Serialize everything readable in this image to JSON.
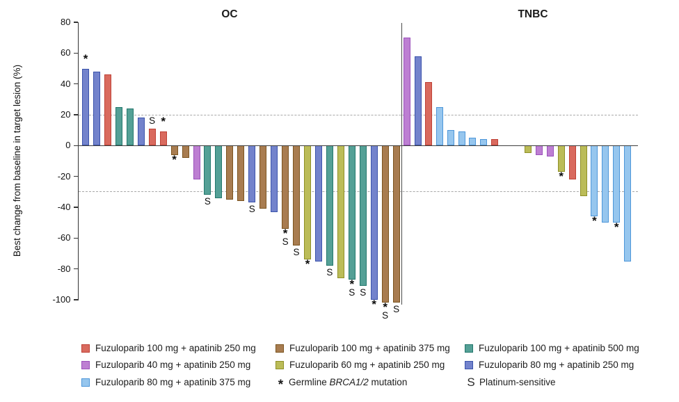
{
  "chart_data": {
    "type": "bar",
    "subtype": "waterfall",
    "ylabel": "Best change from baseline in target lesion (%)",
    "ylim": [
      -100,
      80
    ],
    "y_ticks": [
      "80",
      "60",
      "40",
      "20",
      "0",
      "-20",
      "-40",
      "-60",
      "-80",
      "-100"
    ],
    "y_tick_values": [
      80,
      60,
      40,
      20,
      0,
      -20,
      -40,
      -60,
      -80,
      -100
    ],
    "ref_lines": [
      20,
      -30
    ],
    "grid": "off",
    "legend_position": "bottom",
    "colors": {
      "f100a250": {
        "fill": "#D96A5E",
        "border": "#BE4136"
      },
      "f40a250": {
        "fill": "#BD7FD2",
        "border": "#9B51BB"
      },
      "f80a375": {
        "fill": "#96C6EE",
        "border": "#4D96D9"
      },
      "f100a375": {
        "fill": "#A87C50",
        "border": "#7B541F"
      },
      "f60a250": {
        "fill": "#BBBC58",
        "border": "#8F9027"
      },
      "f100a500": {
        "fill": "#54A096",
        "border": "#23776C"
      },
      "f80a250": {
        "fill": "#7383CC",
        "border": "#3A53AB"
      }
    },
    "markers": {
      "star": {
        "symbol": "*",
        "label": "Germline BRCA1/2 mutation"
      },
      "s": {
        "symbol": "S",
        "label": "Platinum-sensitive"
      }
    },
    "panels": [
      {
        "title": "OC",
        "bars": [
          {
            "value": 50,
            "group": "f80a250",
            "marker": "star"
          },
          {
            "value": 48,
            "group": "f80a250",
            "marker": null
          },
          {
            "value": 46,
            "group": "f100a250",
            "marker": null
          },
          {
            "value": 25,
            "group": "f100a500",
            "marker": null
          },
          {
            "value": 24,
            "group": "f100a500",
            "marker": null
          },
          {
            "value": 18,
            "group": "f80a250",
            "marker": null
          },
          {
            "value": 11,
            "group": "f100a250",
            "marker": "s"
          },
          {
            "value": 9,
            "group": "f100a250",
            "marker": "star"
          },
          {
            "value": -6,
            "group": "f100a375",
            "marker": "star"
          },
          {
            "value": -8,
            "group": "f100a375",
            "marker": null
          },
          {
            "value": -22,
            "group": "f40a250",
            "marker": null
          },
          {
            "value": -32,
            "group": "f100a500",
            "marker": "s"
          },
          {
            "value": -34,
            "group": "f100a500",
            "marker": null
          },
          {
            "value": -35,
            "group": "f100a375",
            "marker": null
          },
          {
            "value": -36,
            "group": "f100a375",
            "marker": null
          },
          {
            "value": -37,
            "group": "f80a250",
            "marker": "s"
          },
          {
            "value": -41,
            "group": "f100a375",
            "marker": null
          },
          {
            "value": -43,
            "group": "f80a250",
            "marker": null
          },
          {
            "value": -54,
            "group": "f100a375",
            "marker": "star_s"
          },
          {
            "value": -65,
            "group": "f100a375",
            "marker": "s"
          },
          {
            "value": -74,
            "group": "f60a250",
            "marker": "star"
          },
          {
            "value": -75,
            "group": "f80a250",
            "marker": null
          },
          {
            "value": -78,
            "group": "f100a500",
            "marker": "s"
          },
          {
            "value": -86,
            "group": "f60a250",
            "marker": null
          },
          {
            "value": -87,
            "group": "f100a500",
            "marker": "star_s"
          },
          {
            "value": -91,
            "group": "f100a500",
            "marker": "s"
          },
          {
            "value": -100,
            "group": "f80a250",
            "marker": "star"
          },
          {
            "value": -102,
            "group": "f100a375",
            "marker": "star_s"
          },
          {
            "value": -102,
            "group": "f100a375",
            "marker": "s"
          }
        ]
      },
      {
        "title": "TNBC",
        "bars": [
          {
            "value": 70,
            "group": "f40a250",
            "marker": null
          },
          {
            "value": 58,
            "group": "f80a250",
            "marker": null
          },
          {
            "value": 41,
            "group": "f100a250",
            "marker": null
          },
          {
            "value": 25,
            "group": "f80a375",
            "marker": null
          },
          {
            "value": 10,
            "group": "f80a375",
            "marker": null
          },
          {
            "value": 9,
            "group": "f80a375",
            "marker": null
          },
          {
            "value": 5,
            "group": "f80a375",
            "marker": null
          },
          {
            "value": 4,
            "group": "f80a375",
            "marker": null
          },
          {
            "value": 4,
            "group": "f100a250",
            "marker": null
          },
          {
            "value": -5,
            "group": "f60a250",
            "marker": null
          },
          {
            "value": -6,
            "group": "f40a250",
            "marker": null
          },
          {
            "value": -7,
            "group": "f40a250",
            "marker": null
          },
          {
            "value": -17,
            "group": "f60a250",
            "marker": "star"
          },
          {
            "value": -22,
            "group": "f100a250",
            "marker": null
          },
          {
            "value": -33,
            "group": "f60a250",
            "marker": null
          },
          {
            "value": -46,
            "group": "f80a375",
            "marker": "star"
          },
          {
            "value": -50,
            "group": "f80a375",
            "marker": null
          },
          {
            "value": -50,
            "group": "f80a375",
            "marker": "star"
          },
          {
            "value": -75,
            "group": "f80a375",
            "marker": null
          }
        ]
      }
    ]
  },
  "legend": {
    "items": [
      {
        "key": "f100a250",
        "label": "Fuzuloparib 100 mg + apatinib 250 mg"
      },
      {
        "key": "f40a250",
        "label": "Fuzuloparib 40 mg + apatinib 250 mg"
      },
      {
        "key": "f80a375",
        "label": "Fuzuloparib 80 mg + apatinib 375 mg"
      },
      {
        "key": "f100a375",
        "label": "Fuzuloparib 100 mg + apatinib 375 mg"
      },
      {
        "key": "f60a250",
        "label": "Fuzuloparib 60 mg + apatinib 250 mg"
      },
      {
        "key": "f100a500",
        "label": "Fuzuloparib 100 mg + apatinib 500 mg"
      },
      {
        "key": "f80a250",
        "label": "Fuzuloparib 80 mg + apatinib 250 mg"
      }
    ],
    "star_symbol": "*",
    "star_label_prefix": "Germline ",
    "star_label_italic": "BRCA1/2",
    "star_label_suffix": " mutation",
    "s_symbol": "S",
    "s_label": "Platinum-sensitive"
  }
}
